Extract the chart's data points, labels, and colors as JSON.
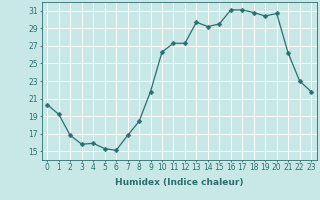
{
  "xlabel": "Humidex (Indice chaleur)",
  "ylabel": "",
  "x_values": [
    0,
    1,
    2,
    3,
    4,
    5,
    6,
    7,
    8,
    9,
    10,
    11,
    12,
    13,
    14,
    15,
    16,
    17,
    18,
    19,
    20,
    21,
    22,
    23
  ],
  "y_values": [
    20.3,
    19.2,
    16.8,
    15.8,
    15.9,
    15.3,
    15.1,
    16.8,
    18.4,
    21.8,
    26.3,
    27.3,
    27.3,
    29.7,
    29.2,
    29.5,
    31.1,
    31.1,
    30.8,
    30.4,
    30.7,
    26.2,
    23.0,
    21.8
  ],
  "line_color": "#2d6e6e",
  "marker": "D",
  "marker_size": 2.5,
  "bg_color": "#c8e8e8",
  "grid_color": "#ffffff",
  "axis_color": "#2d6e6e",
  "tick_color": "#2d6e6e",
  "ylim": [
    14,
    32
  ],
  "yticks": [
    15,
    17,
    19,
    21,
    23,
    25,
    27,
    29,
    31
  ],
  "xlim": [
    -0.5,
    23.5
  ],
  "xticks": [
    0,
    1,
    2,
    3,
    4,
    5,
    6,
    7,
    8,
    9,
    10,
    11,
    12,
    13,
    14,
    15,
    16,
    17,
    18,
    19,
    20,
    21,
    22,
    23
  ],
  "font_size_label": 6.5,
  "font_size_tick": 5.5
}
